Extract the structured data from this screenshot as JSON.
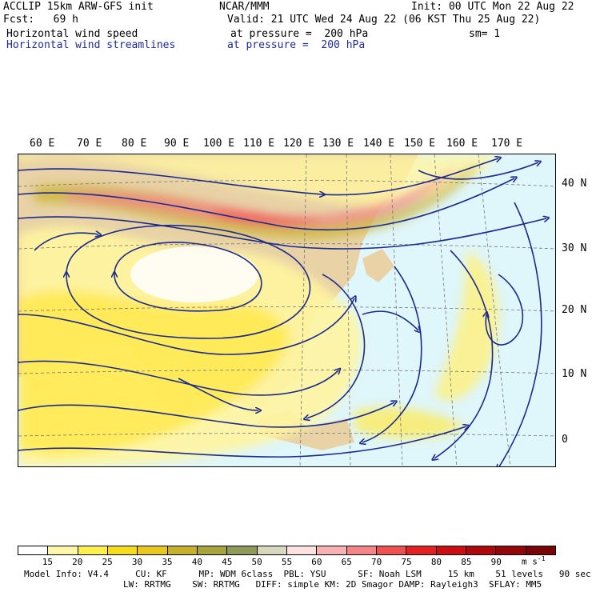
{
  "header": {
    "line1_left": "ACCLIP 15km ARW-GFS init",
    "line1_center": "NCAR/MMM",
    "line1_right": "Init: 00 UTC Mon 22 Aug 22",
    "line2_left": "Fcst:   69 h",
    "line2_right": "Valid: 21 UTC Wed 24 Aug 22 (06 KST Thu 25 Aug 22)",
    "line3_left": "Horizontal wind speed",
    "line3_center": "at pressure =  200 hPa",
    "line3_right": "sm= 1",
    "line4_left": "Horizontal wind streamlines",
    "line4_center": "at pressure =  200 hPa"
  },
  "longitude_labels": [
    "60 E",
    "70 E",
    "80 E",
    "90 E",
    "100 E",
    "110 E",
    "120 E",
    "130 E",
    "140 E",
    "150 E",
    "160 E",
    "170 E"
  ],
  "latitude_labels": [
    "40 N",
    "30 N",
    "20 N",
    "10 N",
    "0"
  ],
  "colorbar": {
    "ticks": [
      "15",
      "20",
      "25",
      "30",
      "35",
      "40",
      "45",
      "50",
      "55",
      "60",
      "65",
      "70",
      "75",
      "80",
      "85",
      "90"
    ],
    "units": "m s",
    "units_exp": "-1",
    "colors": [
      "#ffffff",
      "#fff7a8",
      "#ffef4a",
      "#f7dc1c",
      "#e8c81a",
      "#c8b12a",
      "#a8a43c",
      "#8f9a58",
      "#d9d7bd",
      "#fde0e0",
      "#f9b2b4",
      "#f48488",
      "#ef5052",
      "#e42021",
      "#cc0e10",
      "#b0080a",
      "#95060a",
      "#7a0408"
    ]
  },
  "footer": {
    "line1": "Model Info: V4.4     CU: KF      MP: WDM 6class  PBL: YSU      SF: Noah LSM     15 km    51 levels   90 sec",
    "line2": "LW: RRTMG    SW: RRTMG   DIFF: simple KM: 2D Smagor DAMP: Rayleigh3  SFLAY: MM5"
  },
  "map_colors": {
    "ocean": "#dff6fa",
    "land": "#e8d2a6",
    "streamline": "#1b2a8c"
  }
}
